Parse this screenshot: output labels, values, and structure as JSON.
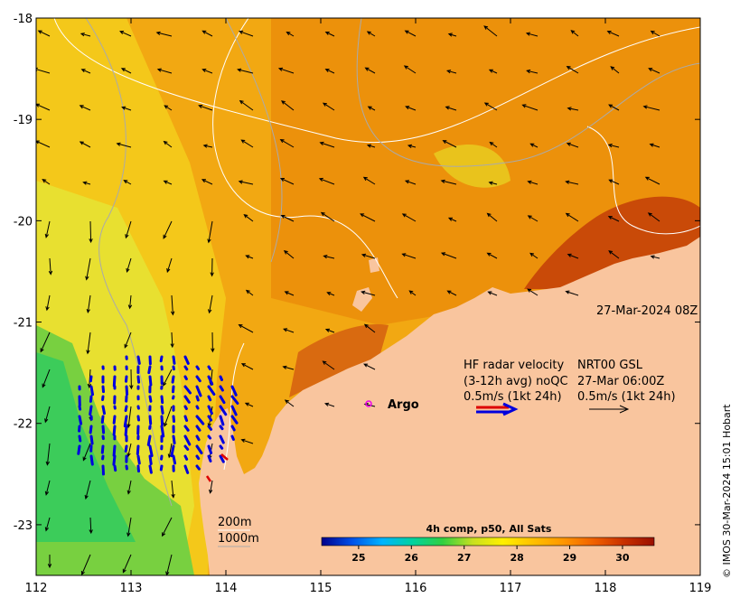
{
  "map": {
    "date_label": "27-Mar-2024 08Z",
    "copyright": "© IMOS 30-Mar-2024 15:01 Hobart",
    "lon_ticks": [
      "112",
      "113",
      "114",
      "115",
      "116",
      "117",
      "118",
      "119"
    ],
    "lat_ticks": [
      "-18",
      "-19",
      "-20",
      "-21",
      "-22",
      "-23"
    ],
    "lon_range": [
      112,
      119
    ],
    "lat_range": [
      -23.5,
      -18
    ],
    "land_color": "#f9c59e",
    "radar_arrow_color": "#0000dd",
    "radar_qc_color": "#dd0000",
    "argo_color": "#ee00ee"
  },
  "legend": {
    "hf_title": "HF radar velocity",
    "hf_avg": "(3-12h avg) noQC",
    "hf_scale": "0.5m/s (1kt 24h)",
    "nrt_title": "NRT00 GSL",
    "nrt_date": "27-Mar 06:00Z",
    "nrt_scale": "0.5m/s (1kt 24h)",
    "argo_label": "Argo",
    "isobath_200": "200m",
    "isobath_1000": "1000m"
  },
  "colorbar": {
    "title": "4h comp, p50, All Sats",
    "ticks": [
      "25",
      "26",
      "27",
      "28",
      "29",
      "30"
    ],
    "range": [
      24.3,
      30.6
    ],
    "palette": [
      "#00008b",
      "#0050e8",
      "#00b4ff",
      "#00d2a0",
      "#30d040",
      "#c8e020",
      "#fff000",
      "#ffc000",
      "#ff9600",
      "#f06000",
      "#c83000",
      "#9a1000"
    ]
  }
}
